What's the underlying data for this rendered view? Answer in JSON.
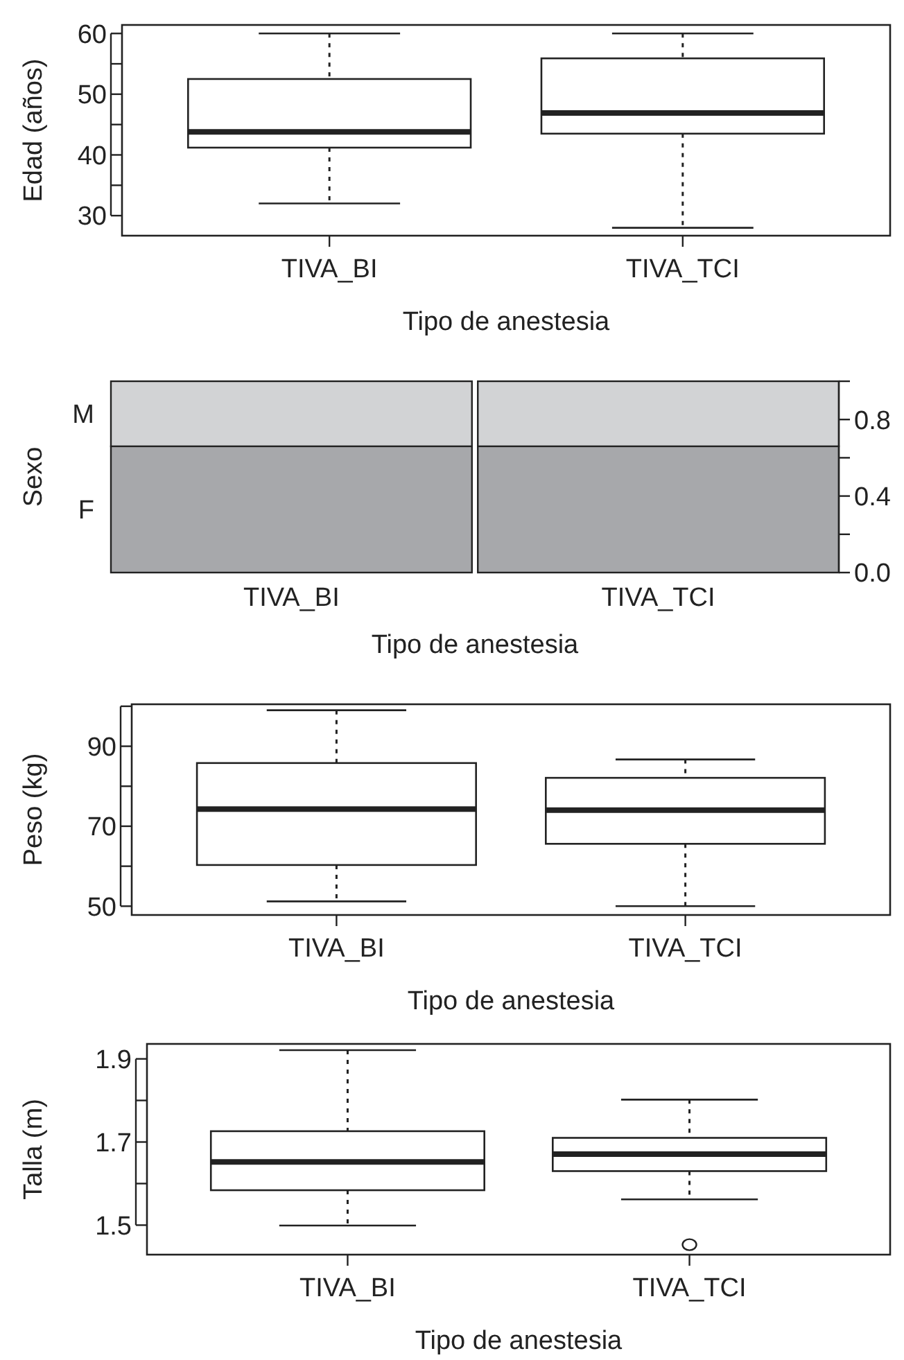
{
  "chart_data": [
    {
      "type": "box",
      "categories": [
        "TIVA_BI",
        "TIVA_TCI"
      ],
      "xlabel": "Tipo de anestesia",
      "ylabel": "Edad (años)",
      "ylim": [
        26.7,
        61.4
      ],
      "yticks": [
        30,
        {
          "value": 35,
          "label": null
        },
        40,
        {
          "value": 45,
          "label": null
        },
        50,
        {
          "value": 55,
          "label": null
        },
        60
      ],
      "boxes": [
        {
          "low": 32,
          "q1": 41.2,
          "median": 43.8,
          "q3": 52.5,
          "high": 60
        },
        {
          "low": 28,
          "q1": 43.5,
          "median": 46.9,
          "q3": 55.9,
          "high": 60
        }
      ]
    },
    {
      "type": "bar",
      "stacked": true,
      "categories": [
        "TIVA_BI",
        "TIVA_TCI"
      ],
      "xlabel": "Tipo de anestesia",
      "ylabel": "Sexo",
      "ylim": [
        0,
        1
      ],
      "yticks": [
        {
          "value": 0,
          "label": "0.0"
        },
        {
          "value": 0.2,
          "label": null
        },
        0.4,
        {
          "value": 0.6,
          "label": null
        },
        0.8,
        {
          "value": 1,
          "label": null
        }
      ],
      "series": [
        {
          "name": "F",
          "color": "#a7a8ab",
          "values": [
            0.66,
            0.66
          ]
        },
        {
          "name": "M",
          "color": "#d2d3d5",
          "values": [
            0.34,
            0.34
          ]
        }
      ]
    },
    {
      "type": "box",
      "categories": [
        "TIVA_BI",
        "TIVA_TCI"
      ],
      "xlabel": "Tipo de anestesia",
      "ylabel": "Peso (kg)",
      "ylim": [
        47.8,
        100.5
      ],
      "yticks": [
        50,
        {
          "value": 60,
          "label": null
        },
        70,
        {
          "value": 80,
          "label": null
        },
        90,
        {
          "value": 100,
          "label": null
        }
      ],
      "boxes": [
        {
          "low": 51.2,
          "q1": 60.3,
          "median": 74.3,
          "q3": 85.8,
          "high": 99
        },
        {
          "low": 50,
          "q1": 65.6,
          "median": 74,
          "q3": 82.1,
          "high": 86.7
        }
      ]
    },
    {
      "type": "box",
      "categories": [
        "TIVA_BI",
        "TIVA_TCI"
      ],
      "xlabel": "Tipo de anestesia",
      "ylabel": "Talla (m)",
      "ylim": [
        1.429,
        1.936
      ],
      "yticks": [
        1.5,
        {
          "value": 1.6,
          "label": null
        },
        1.7,
        {
          "value": 1.8,
          "label": null
        },
        1.9
      ],
      "boxes": [
        {
          "low": 1.499,
          "q1": 1.584,
          "median": 1.652,
          "q3": 1.726,
          "high": 1.921
        },
        {
          "low": 1.562,
          "q1": 1.63,
          "median": 1.671,
          "q3": 1.71,
          "high": 1.802,
          "outliers": [
            1.453
          ]
        }
      ]
    }
  ]
}
